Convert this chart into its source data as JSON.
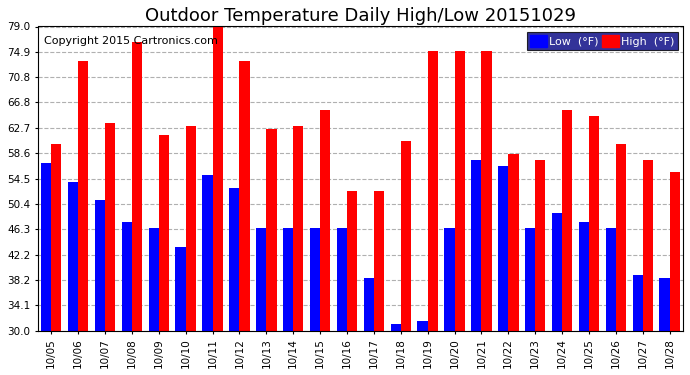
{
  "title": "Outdoor Temperature Daily High/Low 20151029",
  "copyright": "Copyright 2015 Cartronics.com",
  "dates": [
    "10/05",
    "10/06",
    "10/07",
    "10/08",
    "10/09",
    "10/10",
    "10/11",
    "10/12",
    "10/13",
    "10/14",
    "10/15",
    "10/16",
    "10/17",
    "10/18",
    "10/19",
    "10/20",
    "10/21",
    "10/22",
    "10/23",
    "10/24",
    "10/25",
    "10/26",
    "10/27",
    "10/28"
  ],
  "high": [
    60.0,
    73.5,
    63.5,
    76.5,
    61.5,
    63.0,
    79.0,
    73.5,
    62.5,
    63.0,
    65.5,
    52.5,
    52.5,
    60.5,
    75.0,
    75.0,
    75.0,
    58.5,
    57.5,
    65.5,
    64.5,
    60.0,
    57.5,
    55.5
  ],
  "low": [
    57.0,
    54.0,
    51.0,
    47.5,
    46.5,
    43.5,
    55.0,
    53.0,
    46.5,
    46.5,
    46.5,
    46.5,
    38.5,
    31.0,
    31.5,
    46.5,
    57.5,
    56.5,
    46.5,
    49.0,
    47.5,
    46.5,
    39.0,
    38.5
  ],
  "ylim": [
    30.0,
    79.0
  ],
  "yticks": [
    30.0,
    34.1,
    38.2,
    42.2,
    46.3,
    50.4,
    54.5,
    58.6,
    62.7,
    66.8,
    70.8,
    74.9,
    79.0
  ],
  "bg_color": "#ffffff",
  "plot_bg": "#ffffff",
  "high_color": "#ff0000",
  "low_color": "#0000ff",
  "grid_color": "#b0b0b0",
  "title_fontsize": 13,
  "copyright_fontsize": 8,
  "bar_width": 0.38
}
